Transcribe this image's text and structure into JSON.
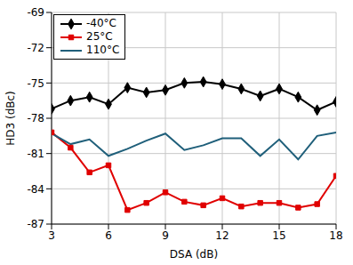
{
  "chart_data": {
    "type": "line",
    "x_label": "DSA (dB)",
    "y_label": "HD3 (dBc)",
    "x": [
      3,
      4,
      5,
      6,
      7,
      8,
      9,
      10,
      11,
      12,
      13,
      14,
      15,
      16,
      17,
      18
    ],
    "xlim": [
      3,
      18
    ],
    "xticks": [
      3,
      6,
      9,
      12,
      15,
      18
    ],
    "ylim": [
      -87,
      -69
    ],
    "yticks": [
      -87,
      -84,
      -81,
      -78,
      -75,
      -72,
      -69
    ],
    "grid": true,
    "legend": "upper left",
    "series": [
      {
        "name": "-40°C",
        "color": "#000000",
        "marker": "diamond",
        "values": [
          -77.2,
          -76.5,
          -76.2,
          -76.8,
          -75.4,
          -75.8,
          -75.6,
          -75.0,
          -74.9,
          -75.1,
          -75.5,
          -76.1,
          -75.5,
          -76.2,
          -77.3,
          -76.6
        ]
      },
      {
        "name": "25°C",
        "color": "#e00000",
        "marker": "square",
        "values": [
          -79.2,
          -80.5,
          -82.6,
          -82.0,
          -85.8,
          -85.2,
          -84.3,
          -85.1,
          -85.4,
          -84.8,
          -85.5,
          -85.2,
          -85.2,
          -85.6,
          -85.3,
          -82.9
        ]
      },
      {
        "name": "110°C",
        "color": "#1f5f7a",
        "marker": "none",
        "values": [
          -79.3,
          -80.2,
          -79.8,
          -81.2,
          -80.6,
          -79.9,
          -79.3,
          -80.7,
          -80.3,
          -79.7,
          -79.7,
          -81.2,
          -79.8,
          -81.5,
          -79.5,
          -79.2
        ]
      }
    ]
  }
}
